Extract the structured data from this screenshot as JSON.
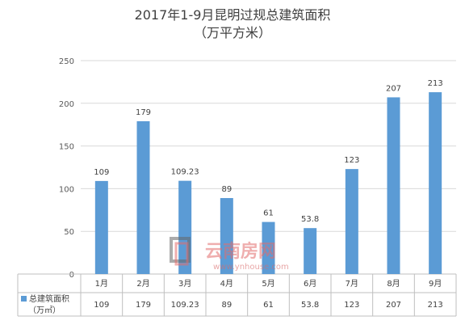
{
  "chart_data": {
    "type": "bar",
    "title": "2017年1-9月昆明过规总建筑面积",
    "subtitle": "（万平方米）",
    "categories": [
      "1月",
      "2月",
      "3月",
      "4月",
      "5月",
      "6月",
      "7月",
      "8月",
      "9月"
    ],
    "series": [
      {
        "name": "总建筑面积（万㎡）",
        "values": [
          109,
          179,
          109.23,
          89,
          61,
          53.8,
          123,
          207,
          213
        ],
        "labels": [
          "109",
          "179",
          "109.23",
          "89",
          "61",
          "53.8",
          "123",
          "207",
          "213"
        ],
        "color": "#5b9bd5"
      }
    ],
    "yticks": [
      "0",
      "50",
      "100",
      "150",
      "200",
      "250"
    ],
    "ylim": [
      0,
      250
    ],
    "grid": true,
    "data_table": true,
    "legend_series_name_line1": "总建筑面积",
    "legend_series_name_line2": "（万㎡）"
  },
  "watermark": {
    "brand": "云南房网",
    "url": "www.ynhouse.com"
  }
}
